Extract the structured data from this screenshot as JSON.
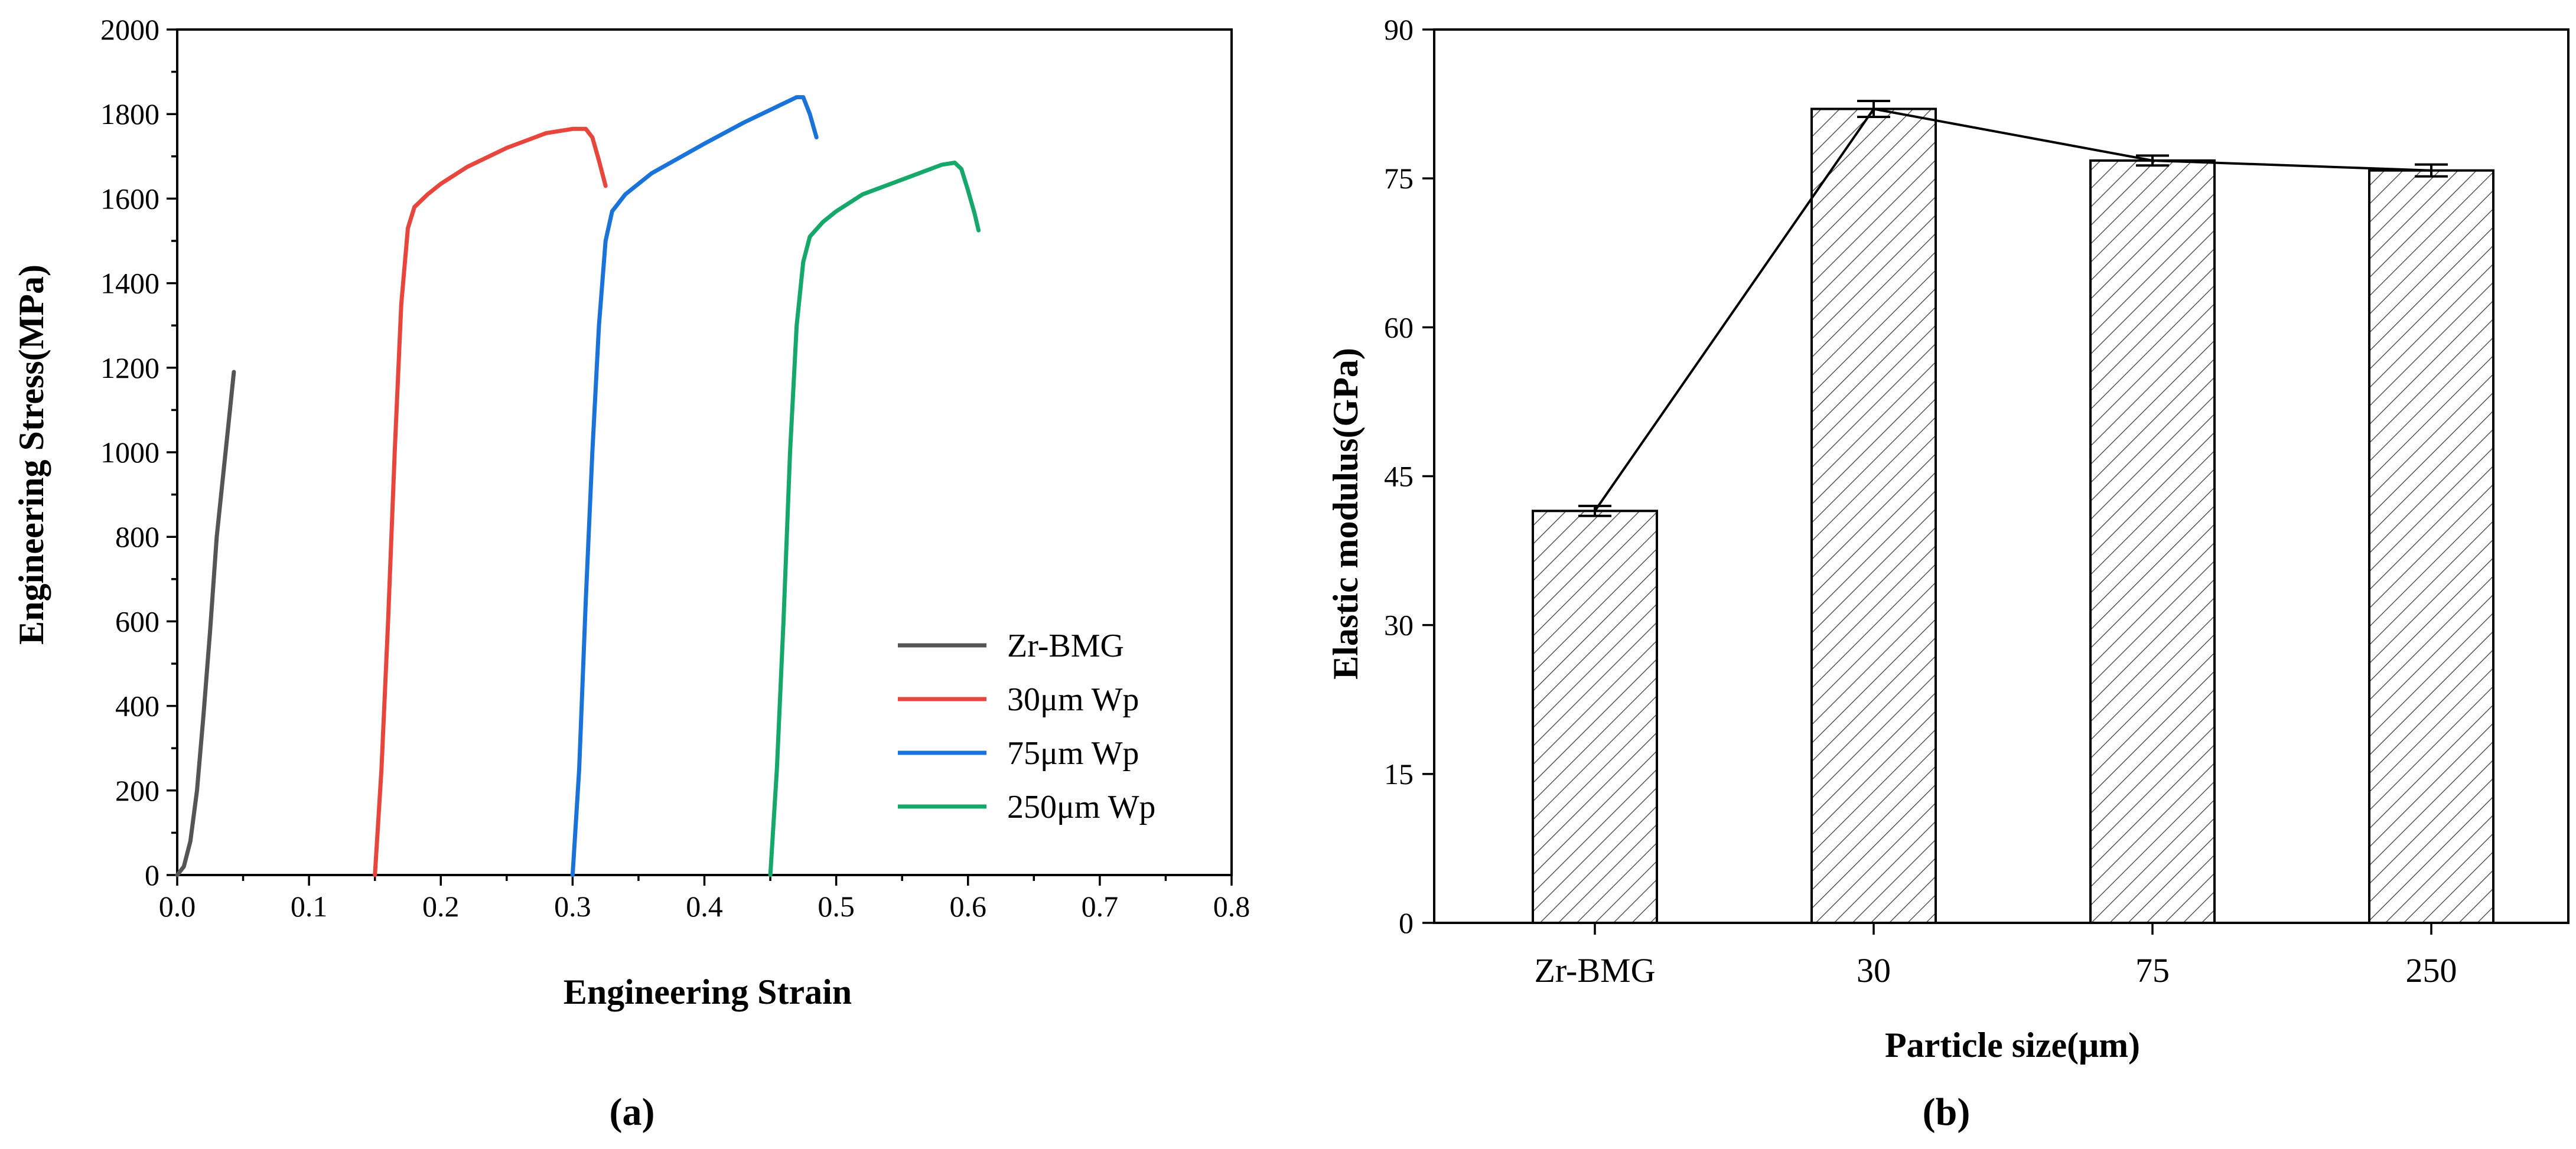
{
  "chart_data": [
    {
      "panel_label": "(a)",
      "type": "line",
      "xlabel": "Engineering Strain",
      "ylabel": "Engineering Stress(MPa)",
      "xlim": [
        0.0,
        0.8
      ],
      "ylim": [
        0,
        2000
      ],
      "x_ticks": [
        "0.0",
        "0.1",
        "0.2",
        "0.3",
        "0.4",
        "0.5",
        "0.6",
        "0.7",
        "0.8"
      ],
      "y_ticks": [
        "0",
        "200",
        "400",
        "600",
        "800",
        "1000",
        "1200",
        "1400",
        "1600",
        "1800",
        "2000"
      ],
      "grid": false,
      "legend_position": "bottom-right",
      "series": [
        {
          "name": "Zr-BMG",
          "color": "#555555",
          "points": [
            [
              0.0,
              0
            ],
            [
              0.005,
              20
            ],
            [
              0.01,
              80
            ],
            [
              0.015,
              200
            ],
            [
              0.02,
              380
            ],
            [
              0.025,
              580
            ],
            [
              0.03,
              800
            ],
            [
              0.035,
              950
            ],
            [
              0.04,
              1100
            ],
            [
              0.043,
              1190
            ]
          ]
        },
        {
          "name": "30μm Wp",
          "color": "#e8453c",
          "points": [
            [
              0.15,
              0
            ],
            [
              0.155,
              250
            ],
            [
              0.16,
              600
            ],
            [
              0.165,
              1000
            ],
            [
              0.17,
              1350
            ],
            [
              0.175,
              1530
            ],
            [
              0.18,
              1580
            ],
            [
              0.19,
              1610
            ],
            [
              0.2,
              1635
            ],
            [
              0.22,
              1675
            ],
            [
              0.25,
              1720
            ],
            [
              0.28,
              1755
            ],
            [
              0.3,
              1765
            ],
            [
              0.31,
              1765
            ],
            [
              0.315,
              1745
            ],
            [
              0.32,
              1690
            ],
            [
              0.325,
              1630
            ]
          ]
        },
        {
          "name": "75μm Wp",
          "color": "#1a73d9",
          "points": [
            [
              0.3,
              0
            ],
            [
              0.305,
              250
            ],
            [
              0.31,
              650
            ],
            [
              0.315,
              1000
            ],
            [
              0.32,
              1300
            ],
            [
              0.325,
              1500
            ],
            [
              0.33,
              1570
            ],
            [
              0.34,
              1610
            ],
            [
              0.36,
              1660
            ],
            [
              0.4,
              1730
            ],
            [
              0.43,
              1780
            ],
            [
              0.46,
              1825
            ],
            [
              0.47,
              1840
            ],
            [
              0.475,
              1840
            ],
            [
              0.48,
              1800
            ],
            [
              0.485,
              1745
            ]
          ]
        },
        {
          "name": "250μm Wp",
          "color": "#15a86a",
          "points": [
            [
              0.45,
              0
            ],
            [
              0.455,
              250
            ],
            [
              0.46,
              600
            ],
            [
              0.465,
              1000
            ],
            [
              0.47,
              1300
            ],
            [
              0.475,
              1450
            ],
            [
              0.48,
              1510
            ],
            [
              0.49,
              1545
            ],
            [
              0.5,
              1570
            ],
            [
              0.52,
              1610
            ],
            [
              0.55,
              1645
            ],
            [
              0.58,
              1680
            ],
            [
              0.59,
              1685
            ],
            [
              0.595,
              1670
            ],
            [
              0.6,
              1620
            ],
            [
              0.605,
              1565
            ],
            [
              0.608,
              1525
            ]
          ]
        }
      ]
    },
    {
      "panel_label": "(b)",
      "type": "bar",
      "xlabel": "Particle size(μm)",
      "ylabel": "Elastic modulus(GPa)",
      "ylim": [
        0,
        90
      ],
      "y_ticks": [
        "0",
        "15",
        "30",
        "45",
        "60",
        "75",
        "90"
      ],
      "categories": [
        "Zr-BMG",
        "30",
        "75",
        "250"
      ],
      "values": [
        41.5,
        82.0,
        76.8,
        75.8
      ],
      "errors": [
        0.5,
        0.8,
        0.5,
        0.6
      ],
      "bar_pattern": "diagonal-hatch",
      "line_overlay": true,
      "grid": false
    }
  ]
}
